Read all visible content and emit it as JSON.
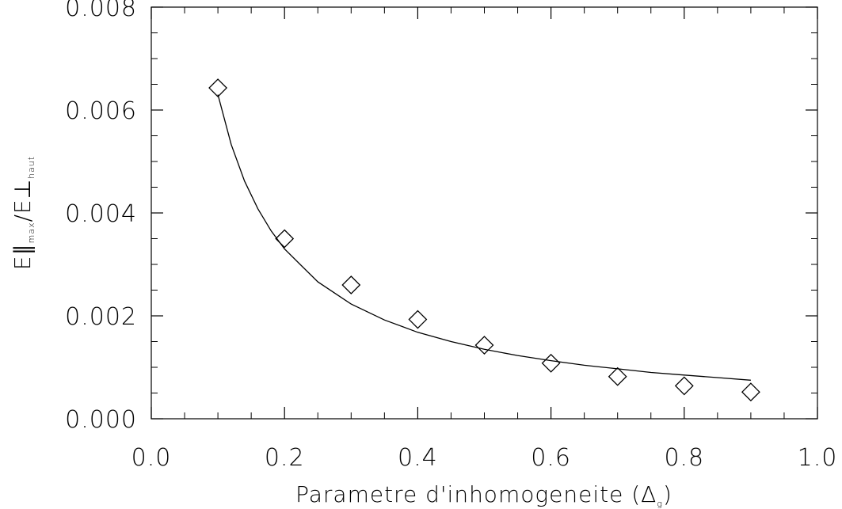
{
  "chart_data": {
    "type": "scatter",
    "title": "",
    "xlabel_prefix": "Parametre d'inhomogeneite (",
    "xlabel_symbol": "Δ",
    "xlabel_sub": "g",
    "xlabel_suffix": ")",
    "ylabel_e1": "E",
    "ylabel_par": "∥",
    "ylabel_sub1": "max",
    "ylabel_slash": "/",
    "ylabel_e2": "E",
    "ylabel_perp": "⊥",
    "ylabel_sub2": "haut",
    "xlim": [
      0.0,
      1.0
    ],
    "ylim": [
      0.0,
      0.008
    ],
    "xticks": [
      "0.0",
      "0.2",
      "0.4",
      "0.6",
      "0.8",
      "1.0"
    ],
    "yticks": [
      "0.000",
      "0.002",
      "0.004",
      "0.006",
      "0.008"
    ],
    "grid": false,
    "series": [
      {
        "marker": "diamond",
        "x": [
          0.1,
          0.2,
          0.3,
          0.4,
          0.5,
          0.6,
          0.7,
          0.8,
          0.9
        ],
        "y": [
          0.00643,
          0.0035,
          0.0026,
          0.00193,
          0.00143,
          0.00108,
          0.00082,
          0.00064,
          0.00052
        ]
      },
      {
        "marker": "none",
        "style": "line",
        "x": [
          0.1,
          0.12,
          0.14,
          0.16,
          0.18,
          0.2,
          0.25,
          0.3,
          0.35,
          0.4,
          0.45,
          0.5,
          0.55,
          0.6,
          0.65,
          0.7,
          0.75,
          0.8,
          0.85,
          0.9
        ],
        "y": [
          0.0063,
          0.00533,
          0.00462,
          0.00408,
          0.00365,
          0.0033,
          0.00266,
          0.00223,
          0.00192,
          0.00168,
          0.0015,
          0.00135,
          0.00123,
          0.00113,
          0.00104,
          0.00097,
          0.0009,
          0.00085,
          0.0008,
          0.00075
        ]
      }
    ]
  }
}
